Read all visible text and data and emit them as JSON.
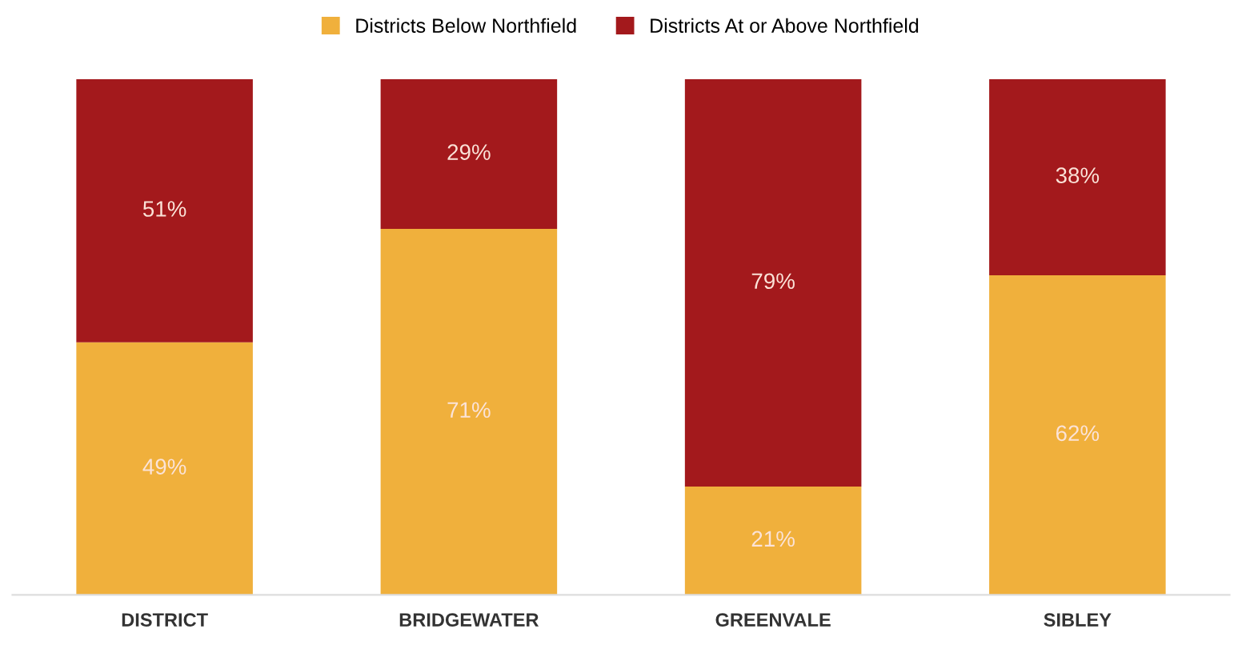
{
  "chart_data": {
    "type": "bar",
    "stacked": true,
    "categories": [
      "DISTRICT",
      "BRIDGEWATER",
      "GREENVALE",
      "SIBLEY"
    ],
    "series": [
      {
        "name": "Districts Below Northfield",
        "color": "#f0b03c",
        "values": [
          49,
          71,
          21,
          62
        ],
        "value_labels": [
          "49%",
          "71%",
          "21%",
          "62%"
        ]
      },
      {
        "name": "Districts At or Above Northfield",
        "color": "#a3191c",
        "values": [
          51,
          29,
          79,
          38
        ],
        "value_labels": [
          "51%",
          "29%",
          "79%",
          "38%"
        ]
      }
    ],
    "legend": "top",
    "grid": false
  }
}
